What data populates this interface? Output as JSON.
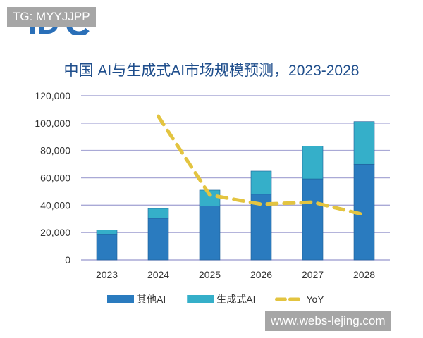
{
  "watermarks": {
    "top": "TG: MYYJJPP",
    "bottom": "www.webs-lejing.com"
  },
  "logo_text": "IDC",
  "chart_data": {
    "type": "bar",
    "stacked": true,
    "title": "中国 AI与生成式AI市场规模预测，2023-2028",
    "categories": [
      "2023",
      "2024",
      "2025",
      "2026",
      "2027",
      "2028"
    ],
    "ylim": [
      0,
      120000
    ],
    "yticks": [
      "0",
      "20,000",
      "40,000",
      "60,000",
      "80,000",
      "100,000",
      "120,000"
    ],
    "grid": true,
    "legend_position": "bottom",
    "series": [
      {
        "name": "其他AI",
        "type": "bar",
        "color": "#2a7bbf",
        "values": [
          18500,
          30400,
          39300,
          48000,
          59200,
          69900
        ]
      },
      {
        "name": "生成式AI",
        "type": "bar",
        "color": "#35afc9",
        "values": [
          3300,
          7200,
          11700,
          16900,
          23900,
          31200
        ]
      },
      {
        "name": "YoY",
        "type": "line",
        "style": "dashed",
        "color": "#e3c440",
        "values": [
          null,
          105000,
          47500,
          40700,
          42200,
          33000
        ]
      }
    ]
  }
}
